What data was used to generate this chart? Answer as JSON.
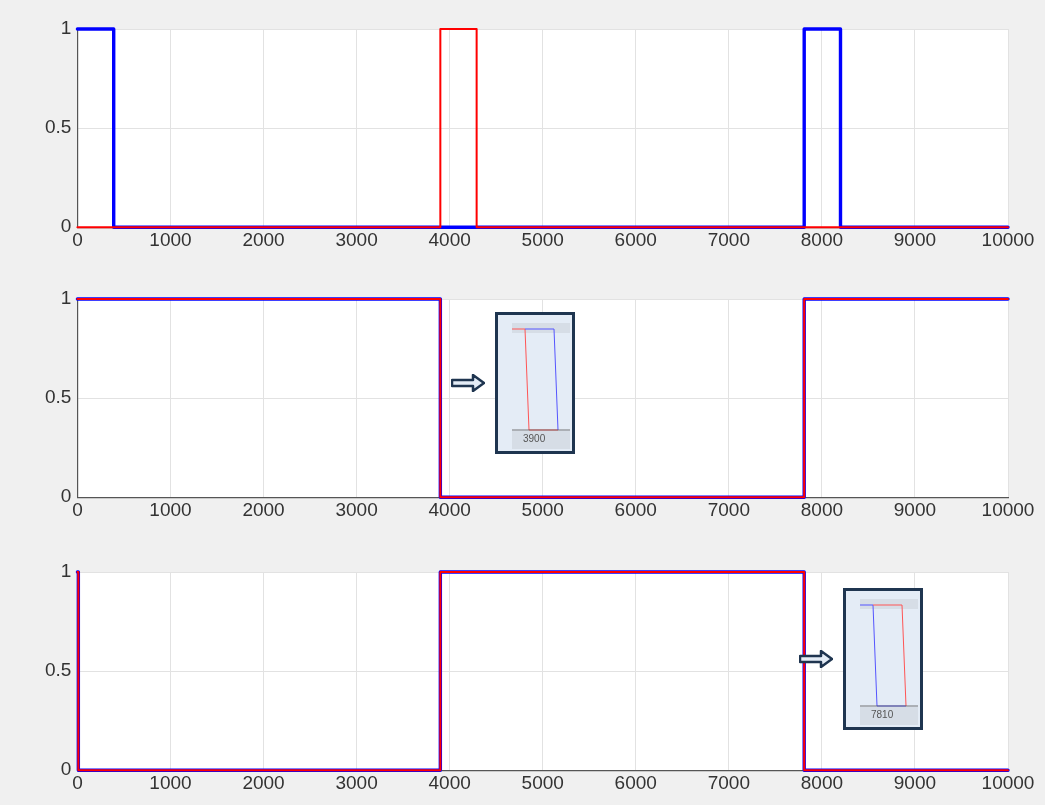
{
  "chart_data": [
    {
      "type": "step",
      "xlim": [
        0,
        10000
      ],
      "ylim": [
        0,
        1
      ],
      "xticks": [
        0,
        1000,
        2000,
        3000,
        4000,
        5000,
        6000,
        7000,
        8000,
        9000,
        10000
      ],
      "yticks": [
        0,
        0.5,
        1
      ],
      "grid": true,
      "series": [
        {
          "color": "#0000ff",
          "x": [
            0,
            390,
            7810,
            8200,
            10000
          ],
          "values": [
            1,
            0,
            1,
            0,
            0
          ]
        },
        {
          "color": "#ff0000",
          "x": [
            0,
            3900,
            4290,
            10000
          ],
          "values": [
            0,
            1,
            0,
            0
          ]
        }
      ]
    },
    {
      "type": "step",
      "xlim": [
        0,
        10000
      ],
      "ylim": [
        0,
        1
      ],
      "xticks": [
        0,
        1000,
        2000,
        3000,
        4000,
        5000,
        6000,
        7000,
        8000,
        9000,
        10000
      ],
      "yticks": [
        0,
        0.5,
        1
      ],
      "grid": true,
      "annotations": [
        "3900"
      ],
      "series": [
        {
          "color": "#0000ff",
          "x": [
            0,
            3900,
            7810,
            10000
          ],
          "values": [
            1,
            0,
            1,
            1
          ]
        },
        {
          "color": "#ff0000",
          "x": [
            0,
            3900,
            7810,
            10000
          ],
          "values": [
            1,
            0,
            1,
            1
          ]
        }
      ]
    },
    {
      "type": "step",
      "xlim": [
        0,
        10000
      ],
      "ylim": [
        0,
        1
      ],
      "xticks": [
        0,
        1000,
        2000,
        3000,
        4000,
        5000,
        6000,
        7000,
        8000,
        9000,
        10000
      ],
      "yticks": [
        0,
        0.5,
        1
      ],
      "grid": true,
      "annotations": [
        "7810"
      ],
      "series": [
        {
          "color": "#0000ff",
          "x": [
            0,
            10,
            3900,
            7810,
            10000
          ],
          "values": [
            1,
            0,
            1,
            0,
            0
          ]
        },
        {
          "color": "#ff0000",
          "x": [
            0,
            10,
            3900,
            7810,
            10000
          ],
          "values": [
            1,
            0,
            1,
            0,
            0
          ]
        }
      ]
    }
  ]
}
